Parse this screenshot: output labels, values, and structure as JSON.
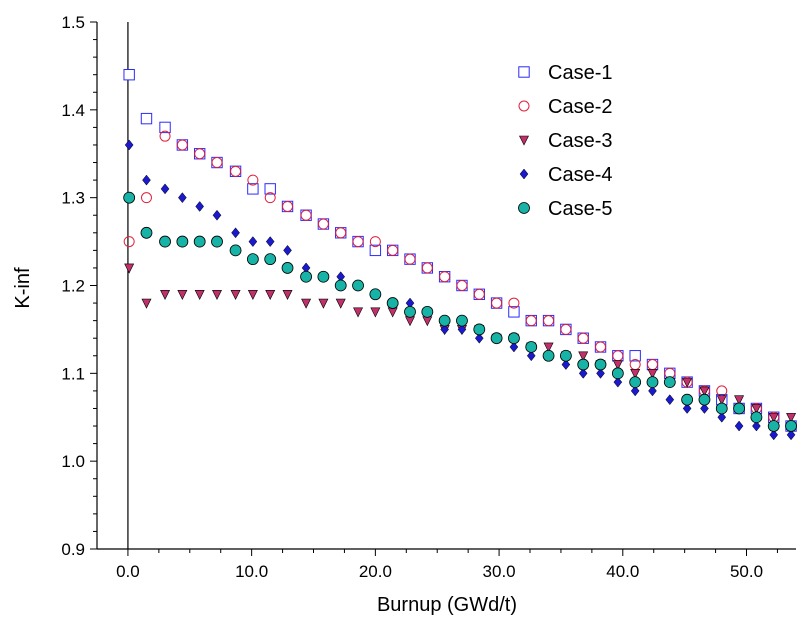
{
  "chart_data": {
    "type": "scatter",
    "title": "",
    "xlabel": "Burnup (GWd/t)",
    "ylabel": "K-inf",
    "xlim": [
      -2.5,
      54
    ],
    "ylim": [
      0.9,
      1.5
    ],
    "x_ticks": [
      0,
      10,
      20,
      30,
      40,
      50
    ],
    "x_tick_labels": [
      "0.0",
      "10.0",
      "20.0",
      "30.0",
      "40.0",
      "50.0"
    ],
    "y_ticks": [
      0.9,
      1.0,
      1.1,
      1.2,
      1.3,
      1.4,
      1.5
    ],
    "y_tick_labels": [
      "0.9",
      "1.0",
      "1.1",
      "1.2",
      "1.3",
      "1.4",
      "1.5"
    ],
    "grid": false,
    "legend_position": "top-right",
    "x": [
      0.1,
      1.5,
      3.0,
      4.4,
      5.8,
      7.2,
      8.7,
      10.1,
      11.5,
      12.9,
      14.4,
      15.8,
      17.2,
      18.6,
      20.0,
      21.4,
      22.8,
      24.2,
      25.6,
      27.0,
      28.4,
      29.8,
      31.2,
      32.6,
      34.0,
      35.4,
      36.8,
      38.2,
      39.6,
      41.0,
      42.4,
      43.8,
      45.2,
      46.6,
      48.0,
      49.4,
      50.8,
      52.2,
      53.6
    ],
    "series": [
      {
        "name": "Case-1",
        "marker": "open-square",
        "color": "#2b2bff",
        "values": [
          1.44,
          1.39,
          1.38,
          1.36,
          1.35,
          1.34,
          1.33,
          1.31,
          1.31,
          1.29,
          1.28,
          1.27,
          1.26,
          1.25,
          1.24,
          1.24,
          1.23,
          1.22,
          1.21,
          1.2,
          1.19,
          1.18,
          1.17,
          1.16,
          1.16,
          1.15,
          1.14,
          1.13,
          1.12,
          1.12,
          1.11,
          1.1,
          1.09,
          1.08,
          1.07,
          1.06,
          1.06,
          1.05,
          1.04
        ]
      },
      {
        "name": "Case-2",
        "marker": "open-circle",
        "color": "#e0203c",
        "values": [
          1.25,
          1.3,
          1.37,
          1.36,
          1.35,
          1.34,
          1.33,
          1.32,
          1.3,
          1.29,
          1.28,
          1.27,
          1.26,
          1.25,
          1.25,
          1.24,
          1.23,
          1.22,
          1.21,
          1.2,
          1.19,
          1.18,
          1.18,
          1.16,
          1.16,
          1.15,
          1.14,
          1.13,
          1.12,
          1.11,
          1.11,
          1.1,
          1.09,
          1.08,
          1.08,
          1.06,
          1.06,
          1.05,
          1.04
        ]
      },
      {
        "name": "Case-3",
        "marker": "filled-triangle-down",
        "color": "#c0306a",
        "values": [
          1.22,
          1.18,
          1.19,
          1.19,
          1.19,
          1.19,
          1.19,
          1.19,
          1.19,
          1.19,
          1.18,
          1.18,
          1.18,
          1.17,
          1.17,
          1.17,
          1.16,
          1.16,
          1.15,
          1.15,
          1.15,
          1.14,
          1.14,
          1.13,
          1.13,
          1.12,
          1.12,
          1.11,
          1.11,
          1.1,
          1.1,
          1.09,
          1.09,
          1.08,
          1.07,
          1.07,
          1.06,
          1.05,
          1.05
        ]
      },
      {
        "name": "Case-4",
        "marker": "filled-diamond",
        "color": "#1a1acc",
        "values": [
          1.36,
          1.32,
          1.31,
          1.3,
          1.29,
          1.28,
          1.26,
          1.25,
          1.25,
          1.24,
          1.22,
          1.21,
          1.21,
          1.2,
          1.19,
          1.18,
          1.18,
          1.17,
          1.15,
          1.15,
          1.14,
          1.14,
          1.13,
          1.12,
          1.12,
          1.11,
          1.1,
          1.1,
          1.09,
          1.08,
          1.08,
          1.07,
          1.06,
          1.06,
          1.05,
          1.04,
          1.04,
          1.03,
          1.03
        ]
      },
      {
        "name": "Case-5",
        "marker": "filled-circle",
        "color": "#17b3a6",
        "values": [
          1.3,
          1.26,
          1.25,
          1.25,
          1.25,
          1.25,
          1.24,
          1.23,
          1.23,
          1.22,
          1.21,
          1.21,
          1.2,
          1.2,
          1.19,
          1.18,
          1.17,
          1.17,
          1.16,
          1.16,
          1.15,
          1.14,
          1.14,
          1.13,
          1.12,
          1.12,
          1.11,
          1.11,
          1.1,
          1.09,
          1.09,
          1.09,
          1.07,
          1.07,
          1.06,
          1.06,
          1.05,
          1.04,
          1.04
        ]
      }
    ]
  }
}
